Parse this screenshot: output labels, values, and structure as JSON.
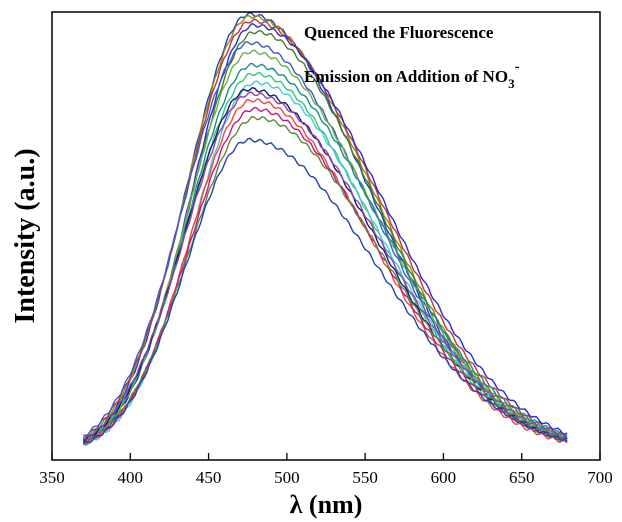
{
  "chart_data": {
    "type": "line",
    "xlabel": "λ (nm)",
    "ylabel": "Intensity (a.u.)",
    "xlim": [
      350,
      700
    ],
    "ylim": [
      0,
      1.0
    ],
    "x_ticks": [
      "350",
      "400",
      "450",
      "500",
      "550",
      "600",
      "650",
      "700"
    ],
    "x_tick_values": [
      350,
      400,
      450,
      500,
      550,
      600,
      650,
      700
    ],
    "y_ticks_shown": false,
    "grid": false,
    "legend": "none",
    "annotations": {
      "line1": "Quenced the Fluorescence",
      "line2_prefix": "Emission on Addition of NO",
      "line2_sub": "3",
      "line2_sup": "-"
    },
    "x": [
      370,
      380,
      390,
      400,
      410,
      420,
      430,
      440,
      450,
      460,
      470,
      480,
      490,
      500,
      510,
      520,
      530,
      540,
      550,
      560,
      570,
      580,
      590,
      600,
      610,
      620,
      630,
      640,
      650,
      660,
      670,
      680
    ],
    "series": [
      {
        "color": "#1f3fbf",
        "peak": 0.995
      },
      {
        "color": "#8b8b1a",
        "peak": 0.99
      },
      {
        "color": "#c0392b",
        "peak": 0.98
      },
      {
        "color": "#2b2bd4",
        "peak": 0.97
      },
      {
        "color": "#4a7a2a",
        "peak": 0.955
      },
      {
        "color": "#3b5bc8",
        "peak": 0.93
      },
      {
        "color": "#6ab04c",
        "peak": 0.91
      },
      {
        "color": "#1e8a8a",
        "peak": 0.88
      },
      {
        "color": "#2ecc71",
        "peak": 0.86
      },
      {
        "color": "#48c9d8",
        "peak": 0.84
      },
      {
        "color": "#1a1a6e",
        "peak": 0.825
      },
      {
        "color": "#8e44ad",
        "peak": 0.815
      },
      {
        "color": "#e74c3c",
        "peak": 0.8
      },
      {
        "color": "#c71585",
        "peak": 0.78
      },
      {
        "color": "#5f8a3a",
        "peak": 0.76
      },
      {
        "color": "#2244aa",
        "peak": 0.71
      }
    ]
  }
}
